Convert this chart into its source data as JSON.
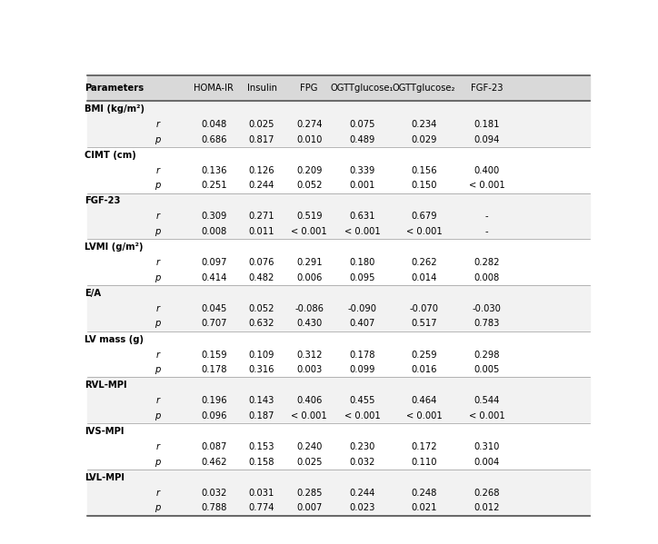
{
  "header_bg": "#d9d9d9",
  "row_bg_odd": "#f2f2f2",
  "row_bg_even": "#ffffff",
  "headers": [
    "Parameters",
    "",
    "HOMA-IR",
    "Insulin",
    "FPG",
    "OGTTglucose₁",
    "OGTTglucose₂",
    "FGF-23"
  ],
  "rows": [
    {
      "label": "BMI (kg/m²)",
      "r": [
        "0.048",
        "0.025",
        "0.274",
        "0.075",
        "0.234",
        "0.181"
      ],
      "p": [
        "0.686",
        "0.817",
        "0.010",
        "0.489",
        "0.029",
        "0.094"
      ]
    },
    {
      "label": "CIMT (cm)",
      "r": [
        "0.136",
        "0.126",
        "0.209",
        "0.339",
        "0.156",
        "0.400"
      ],
      "p": [
        "0.251",
        "0.244",
        "0.052",
        "0.001",
        "0.150",
        "< 0.001"
      ]
    },
    {
      "label": "FGF-23",
      "r": [
        "0.309",
        "0.271",
        "0.519",
        "0.631",
        "0.679",
        "-"
      ],
      "p": [
        "0.008",
        "0.011",
        "< 0.001",
        "< 0.001",
        "< 0.001",
        "-"
      ]
    },
    {
      "label": "LVMI (g/m²)",
      "r": [
        "0.097",
        "0.076",
        "0.291",
        "0.180",
        "0.262",
        "0.282"
      ],
      "p": [
        "0.414",
        "0.482",
        "0.006",
        "0.095",
        "0.014",
        "0.008"
      ]
    },
    {
      "label": "E/A",
      "r": [
        "0.045",
        "0.052",
        "-0.086",
        "-0.090",
        "-0.070",
        "-0.030"
      ],
      "p": [
        "0.707",
        "0.632",
        "0.430",
        "0.407",
        "0.517",
        "0.783"
      ]
    },
    {
      "label": "LV mass (g)",
      "r": [
        "0.159",
        "0.109",
        "0.312",
        "0.178",
        "0.259",
        "0.298"
      ],
      "p": [
        "0.178",
        "0.316",
        "0.003",
        "0.099",
        "0.016",
        "0.005"
      ]
    },
    {
      "label": "RVL-MPI",
      "r": [
        "0.196",
        "0.143",
        "0.406",
        "0.455",
        "0.464",
        "0.544"
      ],
      "p": [
        "0.096",
        "0.187",
        "< 0.001",
        "< 0.001",
        "< 0.001",
        "< 0.001"
      ]
    },
    {
      "label": "IVS-MPI",
      "r": [
        "0.087",
        "0.153",
        "0.240",
        "0.230",
        "0.172",
        "0.310"
      ],
      "p": [
        "0.462",
        "0.158",
        "0.025",
        "0.032",
        "0.110",
        "0.004"
      ]
    },
    {
      "label": "LVL-MPI",
      "r": [
        "0.032",
        "0.031",
        "0.285",
        "0.244",
        "0.248",
        "0.268"
      ],
      "p": [
        "0.788",
        "0.774",
        "0.007",
        "0.023",
        "0.021",
        "0.012"
      ]
    }
  ]
}
